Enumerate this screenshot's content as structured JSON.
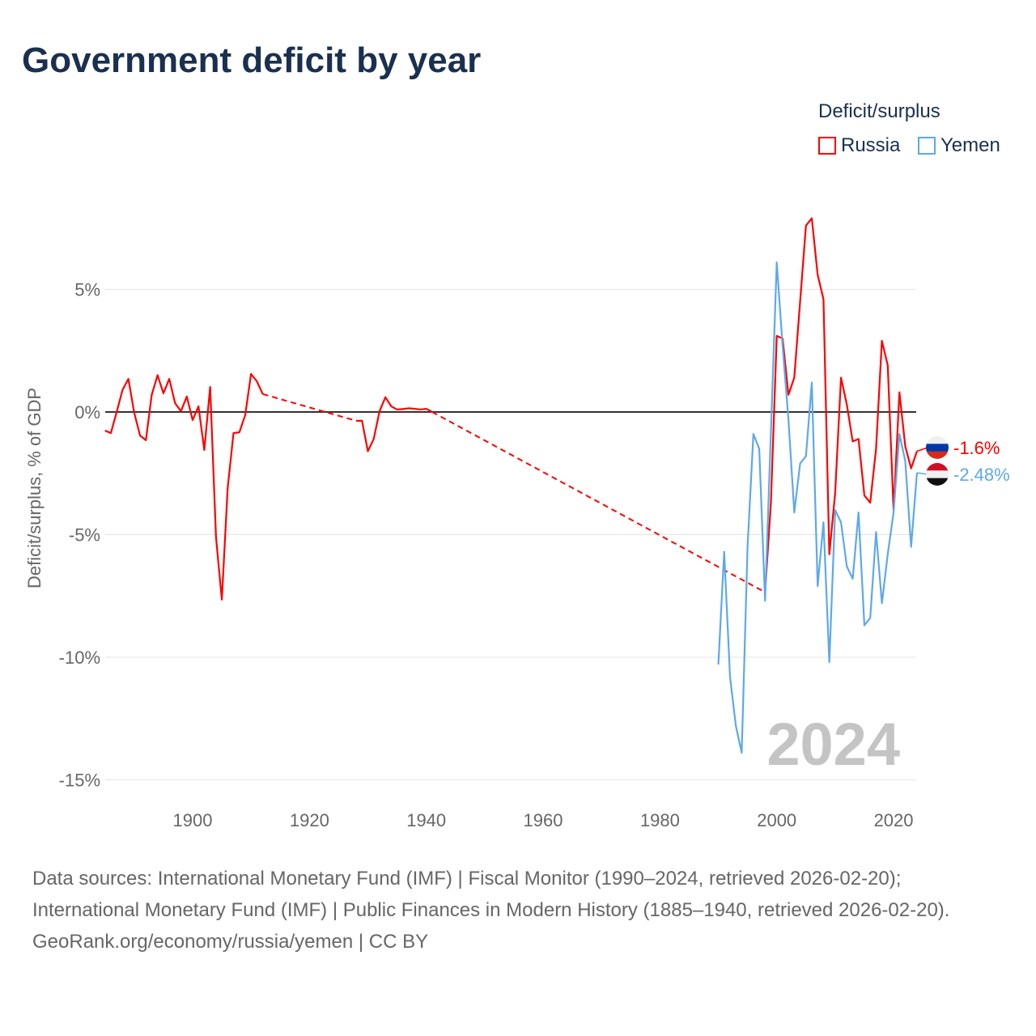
{
  "title": "Government deficit by year",
  "legend": {
    "title": "Deficit/surplus",
    "items": [
      {
        "name": "Russia",
        "color": "#ff0000"
      },
      {
        "name": "Yemen",
        "color": "#5ea8ea"
      }
    ]
  },
  "chart_data": {
    "type": "line",
    "title": "Government deficit by year",
    "ylabel": "Deficit/surplus, % of GDP",
    "xlabel": "",
    "xlim": [
      1885,
      2024
    ],
    "ylim": [
      -15,
      8
    ],
    "x_ticks": [
      {
        "v": 1900,
        "label": "1900"
      },
      {
        "v": 1920,
        "label": "1920"
      },
      {
        "v": 1940,
        "label": "1940"
      },
      {
        "v": 1960,
        "label": "1960"
      },
      {
        "v": 1980,
        "label": "1980"
      },
      {
        "v": 2000,
        "label": "2000"
      },
      {
        "v": 2020,
        "label": "2020"
      }
    ],
    "y_ticks": [
      {
        "v": 5,
        "label": "5%"
      },
      {
        "v": 0,
        "label": "0%"
      },
      {
        "v": -5,
        "label": "-5%"
      },
      {
        "v": -10,
        "label": "-10%"
      },
      {
        "v": -15,
        "label": "-15%"
      }
    ],
    "grid": true,
    "watermark_year": "2024",
    "series": [
      {
        "name": "Russia",
        "color": "#ff0000",
        "end_label": "-1.6%",
        "x": [
          1885,
          1886,
          1887,
          1888,
          1889,
          1890,
          1891,
          1892,
          1893,
          1894,
          1895,
          1896,
          1897,
          1898,
          1899,
          1900,
          1901,
          1902,
          1903,
          1904,
          1905,
          1906,
          1907,
          1908,
          1909,
          1910,
          1911,
          1912,
          1928,
          1929,
          1930,
          1931,
          1932,
          1933,
          1934,
          1935,
          1936,
          1937,
          1938,
          1939,
          1940,
          1941,
          1998,
          1999,
          2000,
          2001,
          2002,
          2003,
          2004,
          2005,
          2006,
          2007,
          2008,
          2009,
          2010,
          2011,
          2012,
          2013,
          2014,
          2015,
          2016,
          2017,
          2018,
          2019,
          2020,
          2021,
          2022,
          2023,
          2024
        ],
        "y": [
          -0.76,
          -0.86,
          0,
          0.9,
          1.35,
          -0.03,
          -0.96,
          -1.15,
          0.7,
          1.5,
          0.76,
          1.35,
          0.36,
          0.03,
          0.63,
          -0.33,
          0.23,
          -1.55,
          1.02,
          -5.1,
          -7.65,
          -3.1,
          -0.86,
          -0.83,
          -0.13,
          1.55,
          1.25,
          0.73,
          -0.36,
          -0.36,
          -1.6,
          -1.1,
          0.03,
          0.6,
          0.23,
          0.1,
          0.12,
          0.15,
          0.13,
          0.1,
          0.13,
          0,
          -7.35,
          -3.7,
          3.1,
          3.0,
          0.7,
          1.4,
          4.5,
          7.6,
          7.9,
          5.6,
          4.6,
          -5.8,
          -3.3,
          1.4,
          0.3,
          -1.2,
          -1.1,
          -3.4,
          -3.7,
          -1.5,
          2.9,
          1.9,
          -4.0,
          0.8,
          -1.4,
          -2.3,
          -1.6
        ]
      },
      {
        "name": "Yemen",
        "color": "#5ea8ea",
        "end_label": "-2.48%",
        "x": [
          1990,
          1991,
          1992,
          1993,
          1994,
          1995,
          1996,
          1997,
          1998,
          1999,
          2000,
          2001,
          2002,
          2003,
          2004,
          2005,
          2006,
          2007,
          2008,
          2009,
          2010,
          2011,
          2012,
          2013,
          2014,
          2015,
          2016,
          2017,
          2018,
          2019,
          2020,
          2021,
          2022,
          2023,
          2024
        ],
        "y": [
          -10.3,
          -5.7,
          -10.8,
          -12.8,
          -13.9,
          -5.5,
          -0.9,
          -1.5,
          -7.7,
          -0.8,
          6.1,
          2.7,
          -0.3,
          -4.1,
          -2.1,
          -1.8,
          1.2,
          -7.1,
          -4.5,
          -10.2,
          -4.0,
          -4.5,
          -6.3,
          -6.8,
          -4.1,
          -8.7,
          -8.4,
          -4.9,
          -7.8,
          -5.8,
          -4.1,
          -0.9,
          -2.0,
          -5.5,
          -2.48
        ]
      }
    ]
  },
  "source": {
    "line1": "Data sources: International Monetary Fund (IMF) | Fiscal Monitor (1990–2024, retrieved 2026-02-20); International Monetary Fund (IMF) | Public Finances in Modern History (1885–1940, retrieved 2026-02-20).",
    "line2": "GeoRank.org/economy/russia/yemen | CC BY"
  }
}
